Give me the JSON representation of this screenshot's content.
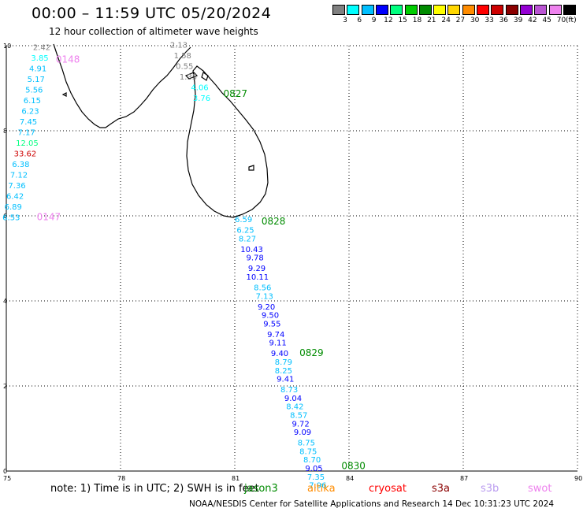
{
  "header": {
    "title": "00:00 – 11:59 UTC 05/20/2024",
    "subtitle": "12 hour collection of altimeter wave heights"
  },
  "legend": {
    "unit": "(ft)",
    "bins": [
      {
        "label": "3",
        "color": "#808080"
      },
      {
        "label": "6",
        "color": "#00ffff"
      },
      {
        "label": "9",
        "color": "#00bfff"
      },
      {
        "label": "12",
        "color": "#0000ff"
      },
      {
        "label": "15",
        "color": "#00ff7f"
      },
      {
        "label": "18",
        "color": "#00cd00"
      },
      {
        "label": "21",
        "color": "#008b00"
      },
      {
        "label": "24",
        "color": "#ffff00"
      },
      {
        "label": "27",
        "color": "#ffd700"
      },
      {
        "label": "30",
        "color": "#ff8c00"
      },
      {
        "label": "33",
        "color": "#ff0000"
      },
      {
        "label": "36",
        "color": "#cd0000"
      },
      {
        "label": "39",
        "color": "#8b0000"
      },
      {
        "label": "42",
        "color": "#9400d3"
      },
      {
        "label": "45",
        "color": "#ba55d3"
      },
      {
        "label": "70",
        "color": "#ee82ee"
      },
      {
        "label": "",
        "color": "#000000"
      }
    ]
  },
  "axes": {
    "x_ticks": [
      "75",
      "78",
      "81",
      "84",
      "87",
      "90"
    ],
    "y_ticks": [
      "0",
      "2",
      "4",
      "6",
      "8",
      "10"
    ],
    "lon_range": [
      75,
      90
    ],
    "lat_range": [
      0,
      10
    ],
    "grid": "dotted"
  },
  "pass_times": [
    {
      "time": "0148",
      "lon": 76.3,
      "lat": 9.6,
      "color": "#ee82ee"
    },
    {
      "time": "0147",
      "lon": 75.8,
      "lat": 5.9,
      "color": "#ee82ee"
    },
    {
      "time": "0827",
      "lon": 80.7,
      "lat": 8.8,
      "color": "#008b00"
    },
    {
      "time": "0828",
      "lon": 81.7,
      "lat": 5.8,
      "color": "#008b00"
    },
    {
      "time": "0829",
      "lon": 82.7,
      "lat": 2.7,
      "color": "#008b00"
    },
    {
      "time": "0830",
      "lon": 83.8,
      "lat": 0.05,
      "color": "#008b00"
    }
  ],
  "tracks": [
    {
      "name": "track-west",
      "points": [
        {
          "v": "2.42",
          "lon": 75.7,
          "lat": 9.9,
          "color": "#808080"
        },
        {
          "v": "3.85",
          "lon": 75.65,
          "lat": 9.65,
          "color": "#00ffff"
        },
        {
          "v": "4.91",
          "lon": 75.6,
          "lat": 9.4,
          "color": "#00bfff"
        },
        {
          "v": "5.17",
          "lon": 75.55,
          "lat": 9.15,
          "color": "#00bfff"
        },
        {
          "v": "5.56",
          "lon": 75.5,
          "lat": 8.9,
          "color": "#00bfff"
        },
        {
          "v": "6.15",
          "lon": 75.45,
          "lat": 8.65,
          "color": "#00bfff"
        },
        {
          "v": "6.23",
          "lon": 75.4,
          "lat": 8.4,
          "color": "#00bfff"
        },
        {
          "v": "7.45",
          "lon": 75.35,
          "lat": 8.15,
          "color": "#00bfff"
        },
        {
          "v": "7.17",
          "lon": 75.3,
          "lat": 7.9,
          "color": "#00bfff"
        },
        {
          "v": "12.05",
          "lon": 75.25,
          "lat": 7.65,
          "color": "#00ff7f"
        },
        {
          "v": "33.62",
          "lon": 75.2,
          "lat": 7.4,
          "color": "#cd0000"
        },
        {
          "v": "6.38",
          "lon": 75.15,
          "lat": 7.15,
          "color": "#00bfff"
        },
        {
          "v": "7.12",
          "lon": 75.1,
          "lat": 6.9,
          "color": "#00bfff"
        },
        {
          "v": "7.36",
          "lon": 75.05,
          "lat": 6.65,
          "color": "#00bfff"
        },
        {
          "v": "6.42",
          "lon": 75.0,
          "lat": 6.4,
          "color": "#00bfff"
        },
        {
          "v": "6.89",
          "lon": 74.95,
          "lat": 6.15,
          "color": "#00bfff"
        },
        {
          "v": "6.53",
          "lon": 74.9,
          "lat": 5.9,
          "color": "#00bfff"
        }
      ]
    },
    {
      "name": "track-north",
      "points": [
        {
          "v": "2.13",
          "lon": 79.3,
          "lat": 9.95,
          "color": "#808080"
        },
        {
          "v": "1.58",
          "lon": 79.4,
          "lat": 9.7,
          "color": "#808080"
        },
        {
          "v": "0.55",
          "lon": 79.45,
          "lat": 9.45,
          "color": "#808080"
        },
        {
          "v": "1.35",
          "lon": 79.55,
          "lat": 9.2,
          "color": "#808080"
        },
        {
          "v": "4.06",
          "lon": 79.85,
          "lat": 8.95,
          "color": "#00ffff"
        },
        {
          "v": "3.76",
          "lon": 79.9,
          "lat": 8.7,
          "color": "#00ffff"
        }
      ]
    },
    {
      "name": "track-east",
      "points": [
        {
          "v": "6.59",
          "lon": 81.0,
          "lat": 5.85,
          "color": "#00bfff"
        },
        {
          "v": "6.25",
          "lon": 81.05,
          "lat": 5.6,
          "color": "#00bfff"
        },
        {
          "v": "8.27",
          "lon": 81.1,
          "lat": 5.4,
          "color": "#00bfff"
        },
        {
          "v": "10.43",
          "lon": 81.15,
          "lat": 5.15,
          "color": "#0000ff"
        },
        {
          "v": "9.78",
          "lon": 81.3,
          "lat": 4.95,
          "color": "#0000ff"
        },
        {
          "v": "9.29",
          "lon": 81.35,
          "lat": 4.7,
          "color": "#0000ff"
        },
        {
          "v": "10.11",
          "lon": 81.3,
          "lat": 4.5,
          "color": "#0000ff"
        },
        {
          "v": "8.56",
          "lon": 81.5,
          "lat": 4.25,
          "color": "#00bfff"
        },
        {
          "v": "7.13",
          "lon": 81.55,
          "lat": 4.05,
          "color": "#00bfff"
        },
        {
          "v": "9.20",
          "lon": 81.6,
          "lat": 3.8,
          "color": "#0000ff"
        },
        {
          "v": "9.50",
          "lon": 81.7,
          "lat": 3.6,
          "color": "#0000ff"
        },
        {
          "v": "9.55",
          "lon": 81.75,
          "lat": 3.4,
          "color": "#0000ff"
        },
        {
          "v": "9.74",
          "lon": 81.85,
          "lat": 3.15,
          "color": "#0000ff"
        },
        {
          "v": "9.11",
          "lon": 81.9,
          "lat": 2.95,
          "color": "#0000ff"
        },
        {
          "v": "9.40",
          "lon": 81.95,
          "lat": 2.7,
          "color": "#0000ff"
        },
        {
          "v": "8.79",
          "lon": 82.05,
          "lat": 2.5,
          "color": "#00bfff"
        },
        {
          "v": "8.25",
          "lon": 82.05,
          "lat": 2.3,
          "color": "#00bfff"
        },
        {
          "v": "9.41",
          "lon": 82.1,
          "lat": 2.1,
          "color": "#0000ff"
        },
        {
          "v": "8.73",
          "lon": 82.2,
          "lat": 1.85,
          "color": "#00bfff"
        },
        {
          "v": "9.04",
          "lon": 82.3,
          "lat": 1.65,
          "color": "#0000ff"
        },
        {
          "v": "8.42",
          "lon": 82.35,
          "lat": 1.45,
          "color": "#00bfff"
        },
        {
          "v": "8.57",
          "lon": 82.45,
          "lat": 1.25,
          "color": "#00bfff"
        },
        {
          "v": "9.72",
          "lon": 82.5,
          "lat": 1.05,
          "color": "#0000ff"
        },
        {
          "v": "9.09",
          "lon": 82.55,
          "lat": 0.85,
          "color": "#0000ff"
        },
        {
          "v": "8.75",
          "lon": 82.65,
          "lat": 0.6,
          "color": "#00bfff"
        },
        {
          "v": "8.75",
          "lon": 82.7,
          "lat": 0.4,
          "color": "#00bfff"
        },
        {
          "v": "8.70",
          "lon": 82.8,
          "lat": 0.2,
          "color": "#00bfff"
        },
        {
          "v": "9.05",
          "lon": 82.85,
          "lat": -0.0,
          "color": "#0000ff"
        },
        {
          "v": "7.35",
          "lon": 82.9,
          "lat": -0.2,
          "color": "#00bfff"
        },
        {
          "v": "7.96",
          "lon": 82.95,
          "lat": -0.4,
          "color": "#00bfff"
        }
      ]
    }
  ],
  "footer": {
    "note": "note:  1) Time is in UTC;  2) SWH is in feet",
    "missions": [
      {
        "name": "jason3",
        "color": "#008b00"
      },
      {
        "name": "altika",
        "color": "#ff8c00"
      },
      {
        "name": "cryosat",
        "color": "#ff0000"
      },
      {
        "name": "s3a",
        "color": "#8b0000"
      },
      {
        "name": "s3b",
        "color": "#ba9cf0"
      },
      {
        "name": "swot",
        "color": "#ee82ee"
      }
    ],
    "credit": "NOAA/NESDIS Center for Satellite Applications and Research    14 Dec 10:31:23 UTC 2024"
  }
}
